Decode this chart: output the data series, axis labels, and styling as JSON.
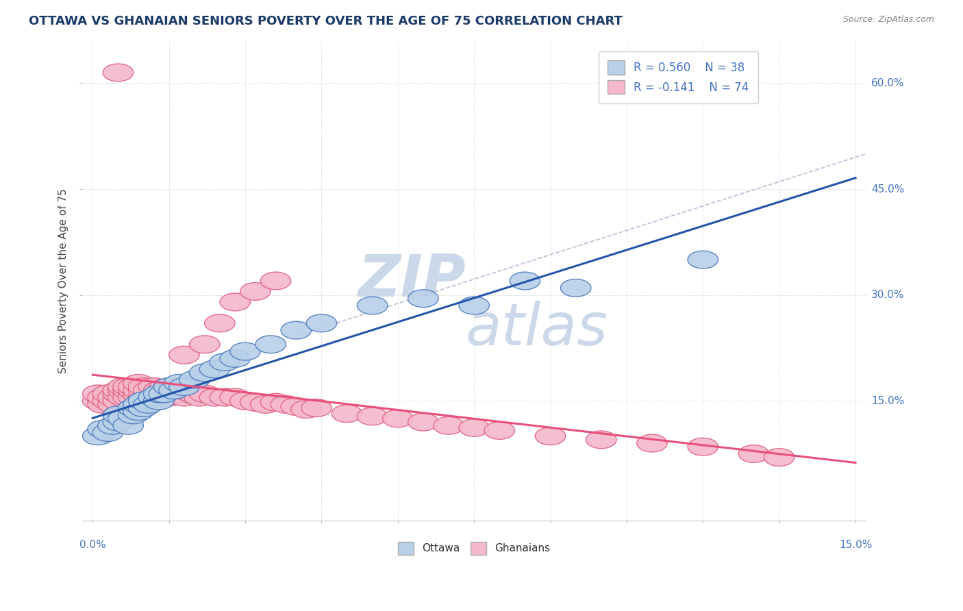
{
  "title": "OTTAWA VS GHANAIAN SENIORS POVERTY OVER THE AGE OF 75 CORRELATION CHART",
  "source": "Source: ZipAtlas.com",
  "ylabel": "Seniors Poverty Over the Age of 75",
  "xlim": [
    -0.002,
    0.152
  ],
  "ylim": [
    -0.02,
    0.66
  ],
  "yticks": [
    0.15,
    0.3,
    0.45,
    0.6
  ],
  "ytick_labels": [
    "15.0%",
    "30.0%",
    "45.0%",
    "60.0%"
  ],
  "legend_r1": "R = 0.560",
  "legend_n1": "N = 38",
  "legend_r2": "R = -0.141",
  "legend_n2": "N = 74",
  "ottawa_fill": "#b8d0e8",
  "ottawa_edge": "#4a7abf",
  "ghanaian_fill": "#f5b8cc",
  "ghanaian_edge": "#e06080",
  "ottawa_line": "#2255aa",
  "ghanaian_line": "#e8507a",
  "dashed_color": "#aaaacc",
  "watermark_color": "#cad8ea",
  "right_label_color": "#4472c4",
  "title_color": "#1a3a6a",
  "ottawa_x": [
    0.001,
    0.002,
    0.003,
    0.004,
    0.005,
    0.005,
    0.006,
    0.007,
    0.008,
    0.008,
    0.009,
    0.009,
    0.01,
    0.01,
    0.011,
    0.012,
    0.013,
    0.013,
    0.014,
    0.015,
    0.016,
    0.017,
    0.018,
    0.02,
    0.022,
    0.024,
    0.026,
    0.028,
    0.03,
    0.035,
    0.04,
    0.045,
    0.055,
    0.065,
    0.075,
    0.085,
    0.095,
    0.12
  ],
  "ottawa_y": [
    0.1,
    0.11,
    0.105,
    0.115,
    0.12,
    0.13,
    0.125,
    0.115,
    0.13,
    0.14,
    0.135,
    0.145,
    0.14,
    0.15,
    0.145,
    0.155,
    0.15,
    0.16,
    0.16,
    0.17,
    0.165,
    0.175,
    0.17,
    0.18,
    0.19,
    0.195,
    0.205,
    0.21,
    0.22,
    0.23,
    0.25,
    0.26,
    0.285,
    0.295,
    0.285,
    0.32,
    0.31,
    0.35
  ],
  "ghanaian_x": [
    0.001,
    0.001,
    0.002,
    0.002,
    0.003,
    0.003,
    0.004,
    0.004,
    0.005,
    0.005,
    0.005,
    0.006,
    0.006,
    0.006,
    0.007,
    0.007,
    0.007,
    0.008,
    0.008,
    0.008,
    0.009,
    0.009,
    0.009,
    0.01,
    0.01,
    0.01,
    0.011,
    0.011,
    0.012,
    0.012,
    0.013,
    0.013,
    0.014,
    0.014,
    0.015,
    0.015,
    0.016,
    0.017,
    0.018,
    0.019,
    0.02,
    0.021,
    0.022,
    0.024,
    0.026,
    0.028,
    0.03,
    0.032,
    0.034,
    0.036,
    0.038,
    0.04,
    0.042,
    0.044,
    0.05,
    0.055,
    0.06,
    0.065,
    0.07,
    0.075,
    0.08,
    0.09,
    0.1,
    0.11,
    0.12,
    0.13,
    0.135,
    0.018,
    0.022,
    0.025,
    0.028,
    0.032,
    0.036,
    0.005
  ],
  "ghanaian_y": [
    0.15,
    0.16,
    0.145,
    0.155,
    0.15,
    0.16,
    0.145,
    0.155,
    0.15,
    0.16,
    0.165,
    0.155,
    0.165,
    0.17,
    0.155,
    0.165,
    0.17,
    0.155,
    0.165,
    0.17,
    0.158,
    0.165,
    0.175,
    0.155,
    0.165,
    0.17,
    0.16,
    0.165,
    0.155,
    0.17,
    0.16,
    0.165,
    0.155,
    0.168,
    0.155,
    0.165,
    0.158,
    0.16,
    0.155,
    0.162,
    0.158,
    0.155,
    0.16,
    0.155,
    0.155,
    0.155,
    0.15,
    0.148,
    0.145,
    0.148,
    0.145,
    0.142,
    0.138,
    0.14,
    0.132,
    0.128,
    0.125,
    0.12,
    0.115,
    0.112,
    0.108,
    0.1,
    0.095,
    0.09,
    0.085,
    0.075,
    0.07,
    0.215,
    0.23,
    0.26,
    0.29,
    0.305,
    0.32,
    0.615
  ]
}
